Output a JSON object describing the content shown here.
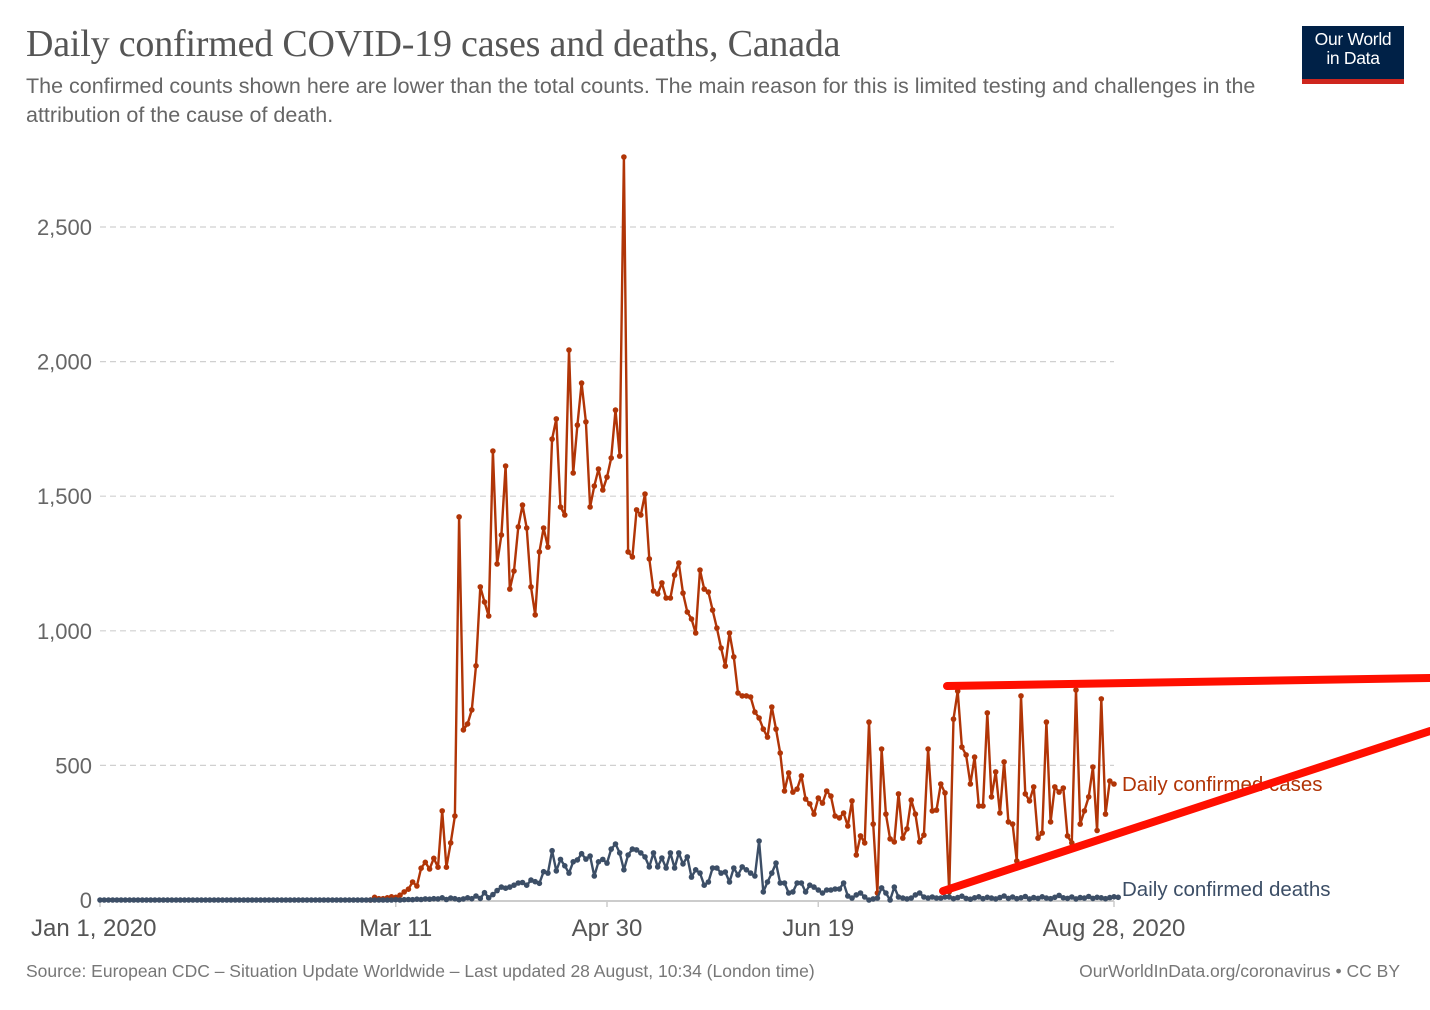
{
  "header": {
    "title": "Daily confirmed COVID-19 cases and deaths, Canada",
    "subtitle": "The confirmed counts shown here are lower than the total counts. The main reason for this is limited testing and challenges in the attribution of the cause of death.",
    "logo": {
      "line1": "Our World",
      "line2": "in Data",
      "bg_color": "#002147",
      "bar_color": "#ce261e"
    }
  },
  "footer": {
    "source": "Source: European CDC – Situation Update Worldwide – Last updated 28 August, 10:34 (London time)",
    "credit": "OurWorldInData.org/coronavirus • CC BY"
  },
  "annotation": {
    "description": "Hand-drawn red widening wedge highlighting recent case pattern",
    "color": "#ff0f00"
  },
  "chart_data": {
    "type": "line",
    "title": "Daily confirmed COVID-19 cases and deaths, Canada",
    "xlabel": "",
    "ylabel": "",
    "x_start": "Jan 1, 2020",
    "x_end": "Aug 28, 2020",
    "x_unit": "days since Jan 1, 2020",
    "xlim": [
      0,
      240
    ],
    "ylim": [
      0,
      2760
    ],
    "grid": "horizontal dashed",
    "legend_placement": "right (inline labels at line ends)",
    "y_ticks": [
      {
        "value": 0,
        "label": "0"
      },
      {
        "value": 500,
        "label": "500"
      },
      {
        "value": 1000,
        "label": "1,000"
      },
      {
        "value": 1500,
        "label": "1,500"
      },
      {
        "value": 2000,
        "label": "2,000"
      },
      {
        "value": 2500,
        "label": "2,500"
      }
    ],
    "x_ticks": [
      {
        "day": 0,
        "label": "Jan 1, 2020"
      },
      {
        "day": 70,
        "label": "Mar 11"
      },
      {
        "day": 120,
        "label": "Apr 30"
      },
      {
        "day": 170,
        "label": "Jun 19"
      },
      {
        "day": 240,
        "label": "Aug 28, 2020"
      }
    ],
    "series": [
      {
        "name": "Daily confirmed cases",
        "color": "#b13507",
        "start_day": 0,
        "values": [
          0,
          0,
          0,
          0,
          0,
          0,
          0,
          0,
          0,
          0,
          0,
          0,
          0,
          0,
          0,
          0,
          0,
          0,
          0,
          0,
          0,
          0,
          0,
          0,
          0,
          0,
          0,
          0,
          0,
          0,
          0,
          0,
          0,
          0,
          0,
          0,
          0,
          0,
          0,
          0,
          0,
          0,
          0,
          0,
          0,
          0,
          0,
          0,
          0,
          0,
          0,
          0,
          0,
          0,
          0,
          0,
          0,
          0,
          0,
          0,
          0,
          0,
          0,
          0,
          0,
          10,
          5,
          5,
          8,
          12,
          10,
          18,
          30,
          40,
          67,
          52,
          118,
          140,
          115,
          155,
          122,
          331,
          122,
          212,
          312,
          1423,
          632,
          654,
          706,
          870,
          1163,
          1107,
          1055,
          1668,
          1248,
          1356,
          1612,
          1155,
          1222,
          1386,
          1467,
          1382,
          1163,
          1059,
          1293,
          1382,
          1311,
          1712,
          1787,
          1460,
          1430,
          2043,
          1586,
          1764,
          1920,
          1776,
          1460,
          1538,
          1601,
          1523,
          1571,
          1642,
          1820,
          1649,
          2760,
          1293,
          1274,
          1449,
          1430,
          1508,
          1267,
          1148,
          1137,
          1178,
          1122,
          1122,
          1207,
          1252,
          1140,
          1070,
          1044,
          992,
          1226,
          1155,
          1144,
          1077,
          1010,
          936,
          869,
          992,
          903,
          769,
          758,
          758,
          754,
          698,
          676,
          635,
          605,
          717,
          635,
          546,
          405,
          472,
          401,
          412,
          461,
          375,
          357,
          319,
          379,
          360,
          405,
          386,
          312,
          305,
          323,
          275,
          368,
          167,
          238,
          212,
          661,
          282,
          26,
          561,
          319,
          227,
          216,
          394,
          230,
          264,
          371,
          319,
          216,
          241,
          561,
          331,
          334,
          431,
          398,
          30,
          672,
          776,
          568,
          539,
          431,
          531,
          349,
          349,
          695,
          383,
          476,
          323,
          513,
          290,
          282,
          145,
          758,
          394,
          368,
          420,
          230,
          249,
          661,
          290,
          420,
          401,
          416,
          238,
          212,
          780,
          282,
          331,
          383,
          494,
          258,
          747,
          319,
          442,
          431
        ]
      },
      {
        "name": "Daily confirmed deaths",
        "color": "#3c4e66",
        "start_day": 0,
        "values": [
          0,
          0,
          0,
          0,
          0,
          0,
          0,
          0,
          0,
          0,
          0,
          0,
          0,
          0,
          0,
          0,
          0,
          0,
          0,
          0,
          0,
          0,
          0,
          0,
          0,
          0,
          0,
          0,
          0,
          0,
          0,
          0,
          0,
          0,
          0,
          0,
          0,
          0,
          0,
          0,
          0,
          0,
          0,
          0,
          0,
          0,
          0,
          0,
          0,
          0,
          0,
          0,
          0,
          0,
          0,
          0,
          0,
          0,
          0,
          0,
          0,
          0,
          0,
          0,
          0,
          0,
          0,
          0,
          0,
          0,
          1,
          0,
          1,
          2,
          1,
          3,
          2,
          4,
          3,
          5,
          4,
          8,
          2,
          7,
          5,
          1,
          4,
          8,
          5,
          15,
          6,
          27,
          8,
          20,
          35,
          48,
          44,
          48,
          55,
          63,
          65,
          55,
          74,
          68,
          62,
          105,
          100,
          183,
          108,
          151,
          127,
          100,
          142,
          149,
          172,
          152,
          163,
          89,
          142,
          151,
          137,
          189,
          208,
          175,
          112,
          167,
          189,
          186,
          175,
          160,
          123,
          175,
          123,
          156,
          119,
          175,
          119,
          175,
          134,
          160,
          85,
          112,
          100,
          55,
          67,
          119,
          119,
          100,
          104,
          67,
          119,
          93,
          123,
          112,
          100,
          89,
          219,
          30,
          67,
          100,
          137,
          63,
          63,
          26,
          30,
          63,
          63,
          30,
          55,
          48,
          37,
          26,
          37,
          37,
          41,
          41,
          63,
          15,
          7,
          19,
          26,
          11,
          0,
          4,
          7,
          45,
          26,
          0,
          48,
          11,
          7,
          4,
          7,
          19,
          26,
          11,
          7,
          11,
          7,
          7,
          11,
          11,
          5,
          9,
          14,
          6,
          3,
          8,
          12,
          5,
          10,
          7,
          4,
          9,
          15,
          6,
          11,
          5,
          8,
          13,
          4,
          9,
          6,
          12,
          7,
          5,
          10,
          17,
          8,
          6,
          11,
          4,
          9,
          7,
          13,
          6,
          10,
          8,
          5,
          9,
          12,
          10
        ]
      }
    ]
  }
}
